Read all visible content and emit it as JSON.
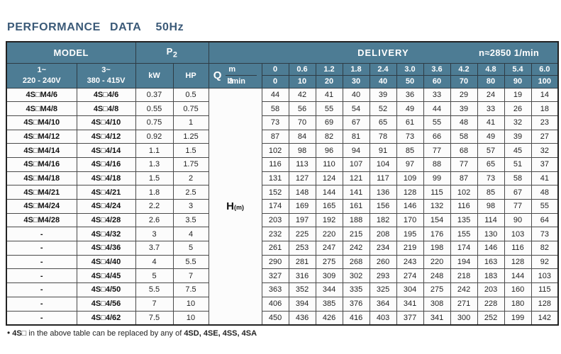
{
  "title": "PERFORMANCE  DATA",
  "frequency": "50Hz",
  "colors": {
    "header_bg": "#4d7c94",
    "title_text": "#3b5a78"
  },
  "table": {
    "model_header": "MODEL",
    "p2_base": "P",
    "p2_sub": "2",
    "delivery_header": "DELIVERY",
    "speed": "n≈2850 1/min",
    "col_1ph": "1~",
    "col_1ph_volt": "220 - 240V",
    "col_3ph": "3~",
    "col_3ph_volt": "380 - 415V",
    "kw_header": "kW",
    "hp_header": "HP",
    "q_label": "Q",
    "unit_m3h_base": "m",
    "unit_m3h_sup": "3",
    "unit_m3h_rest": "/h",
    "unit_lmin": "l/min",
    "head_label": "H",
    "head_unit": "(m)",
    "flow_m3h": [
      "0",
      "0.6",
      "1.2",
      "1.8",
      "2.4",
      "3.0",
      "3.6",
      "4.2",
      "4.8",
      "5.4",
      "6.0"
    ],
    "flow_lmin": [
      "0",
      "10",
      "20",
      "30",
      "40",
      "50",
      "60",
      "70",
      "80",
      "90",
      "100"
    ],
    "rows": [
      {
        "m1": "4S□M4/6",
        "m3": "4S□4/6",
        "kw": "0.37",
        "hp": "0.5",
        "h": [
          "44",
          "42",
          "41",
          "40",
          "39",
          "36",
          "33",
          "29",
          "24",
          "19",
          "14"
        ]
      },
      {
        "m1": "4S□M4/8",
        "m3": "4S□4/8",
        "kw": "0.55",
        "hp": "0.75",
        "h": [
          "58",
          "56",
          "55",
          "54",
          "52",
          "49",
          "44",
          "39",
          "33",
          "26",
          "18"
        ]
      },
      {
        "m1": "4S□M4/10",
        "m3": "4S□4/10",
        "kw": "0.75",
        "hp": "1",
        "h": [
          "73",
          "70",
          "69",
          "67",
          "65",
          "61",
          "55",
          "48",
          "41",
          "32",
          "23"
        ]
      },
      {
        "m1": "4S□M4/12",
        "m3": "4S□4/12",
        "kw": "0.92",
        "hp": "1.25",
        "h": [
          "87",
          "84",
          "82",
          "81",
          "78",
          "73",
          "66",
          "58",
          "49",
          "39",
          "27"
        ]
      },
      {
        "m1": "4S□M4/14",
        "m3": "4S□4/14",
        "kw": "1.1",
        "hp": "1.5",
        "h": [
          "102",
          "98",
          "96",
          "94",
          "91",
          "85",
          "77",
          "68",
          "57",
          "45",
          "32"
        ]
      },
      {
        "m1": "4S□M4/16",
        "m3": "4S□4/16",
        "kw": "1.3",
        "hp": "1.75",
        "h": [
          "116",
          "113",
          "110",
          "107",
          "104",
          "97",
          "88",
          "77",
          "65",
          "51",
          "37"
        ]
      },
      {
        "m1": "4S□M4/18",
        "m3": "4S□4/18",
        "kw": "1.5",
        "hp": "2",
        "h": [
          "131",
          "127",
          "124",
          "121",
          "117",
          "109",
          "99",
          "87",
          "73",
          "58",
          "41"
        ]
      },
      {
        "m1": "4S□M4/21",
        "m3": "4S□4/21",
        "kw": "1.8",
        "hp": "2.5",
        "h": [
          "152",
          "148",
          "144",
          "141",
          "136",
          "128",
          "115",
          "102",
          "85",
          "67",
          "48"
        ]
      },
      {
        "m1": "4S□M4/24",
        "m3": "4S□4/24",
        "kw": "2.2",
        "hp": "3",
        "h": [
          "174",
          "169",
          "165",
          "161",
          "156",
          "146",
          "132",
          "116",
          "98",
          "77",
          "55"
        ]
      },
      {
        "m1": "4S□M4/28",
        "m3": "4S□4/28",
        "kw": "2.6",
        "hp": "3.5",
        "h": [
          "203",
          "197",
          "192",
          "188",
          "182",
          "170",
          "154",
          "135",
          "114",
          "90",
          "64"
        ]
      },
      {
        "m1": "-",
        "m3": "4S□4/32",
        "kw": "3",
        "hp": "4",
        "h": [
          "232",
          "225",
          "220",
          "215",
          "208",
          "195",
          "176",
          "155",
          "130",
          "103",
          "73"
        ]
      },
      {
        "m1": "-",
        "m3": "4S□4/36",
        "kw": "3.7",
        "hp": "5",
        "h": [
          "261",
          "253",
          "247",
          "242",
          "234",
          "219",
          "198",
          "174",
          "146",
          "116",
          "82"
        ]
      },
      {
        "m1": "-",
        "m3": "4S□4/40",
        "kw": "4",
        "hp": "5.5",
        "h": [
          "290",
          "281",
          "275",
          "268",
          "260",
          "243",
          "220",
          "194",
          "163",
          "128",
          "92"
        ]
      },
      {
        "m1": "-",
        "m3": "4S□4/45",
        "kw": "5",
        "hp": "7",
        "h": [
          "327",
          "316",
          "309",
          "302",
          "293",
          "274",
          "248",
          "218",
          "183",
          "144",
          "103"
        ]
      },
      {
        "m1": "-",
        "m3": "4S□4/50",
        "kw": "5.5",
        "hp": "7.5",
        "h": [
          "363",
          "352",
          "344",
          "335",
          "325",
          "304",
          "275",
          "242",
          "203",
          "160",
          "115"
        ]
      },
      {
        "m1": "-",
        "m3": "4S□4/56",
        "kw": "7",
        "hp": "10",
        "h": [
          "406",
          "394",
          "385",
          "376",
          "364",
          "341",
          "308",
          "271",
          "228",
          "180",
          "128"
        ]
      },
      {
        "m1": "-",
        "m3": "4S□4/62",
        "kw": "7.5",
        "hp": "10",
        "h": [
          "450",
          "436",
          "426",
          "416",
          "403",
          "377",
          "341",
          "300",
          "252",
          "199",
          "142"
        ]
      }
    ]
  },
  "footnote": {
    "bullet": "•",
    "model_code": "4S□",
    "text": " in the above table can be replaced by any of ",
    "replacements": "4SD, 4SE, 4SS, 4SA"
  }
}
